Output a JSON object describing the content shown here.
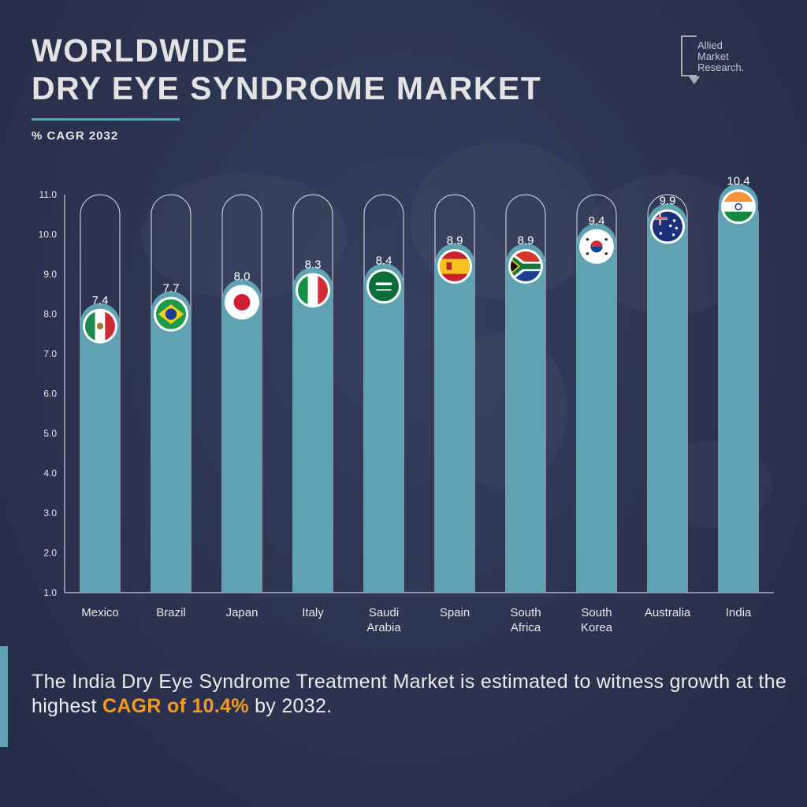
{
  "title": {
    "line1": "WORLDWIDE",
    "line2": "DRY EYE SYNDROME MARKET"
  },
  "subtitle": "% CAGR 2032",
  "logo": {
    "line1": "Allied",
    "line2": "Market",
    "line3": "Research."
  },
  "chart_data": {
    "type": "bar",
    "title": "",
    "xlabel": "",
    "ylabel": "",
    "categories": [
      [
        "Mexico"
      ],
      [
        "Brazil"
      ],
      [
        "Japan"
      ],
      [
        "Italy"
      ],
      [
        "Saudi",
        "Arabia"
      ],
      [
        "Spain"
      ],
      [
        "South",
        "Africa"
      ],
      [
        "South",
        "Korea"
      ],
      [
        "Australia"
      ],
      [
        "India"
      ]
    ],
    "values": [
      7.4,
      7.7,
      8.0,
      8.3,
      8.4,
      8.9,
      8.9,
      9.4,
      9.9,
      10.4
    ],
    "value_labels": [
      "7.4",
      "7.7",
      "8.0",
      "8.3",
      "8.4",
      "8.9",
      "8.9",
      "9.4",
      "9.9",
      "10.4"
    ],
    "ylim": [
      1.0,
      11.0
    ],
    "yticks": [
      "1.0",
      "2.0",
      "3.0",
      "4.0",
      "5.0",
      "6.0",
      "7.0",
      "8.0",
      "9.0",
      "10.0",
      "11.0"
    ],
    "bar_color": "#5fa3b3",
    "flags": [
      "mexico-flag-icon",
      "brazil-flag-icon",
      "japan-flag-icon",
      "italy-flag-icon",
      "saudi-arabia-flag-icon",
      "spain-flag-icon",
      "south-africa-flag-icon",
      "south-korea-flag-icon",
      "australia-flag-icon",
      "india-flag-icon"
    ]
  },
  "footer": {
    "text_before": "The India Dry Eye Syndrome Treatment Market is estimated to witness growth at the highest ",
    "highlight": "CAGR of 10.4%",
    "text_after": " by 2032.",
    "highlight_color": "#f59a21"
  }
}
